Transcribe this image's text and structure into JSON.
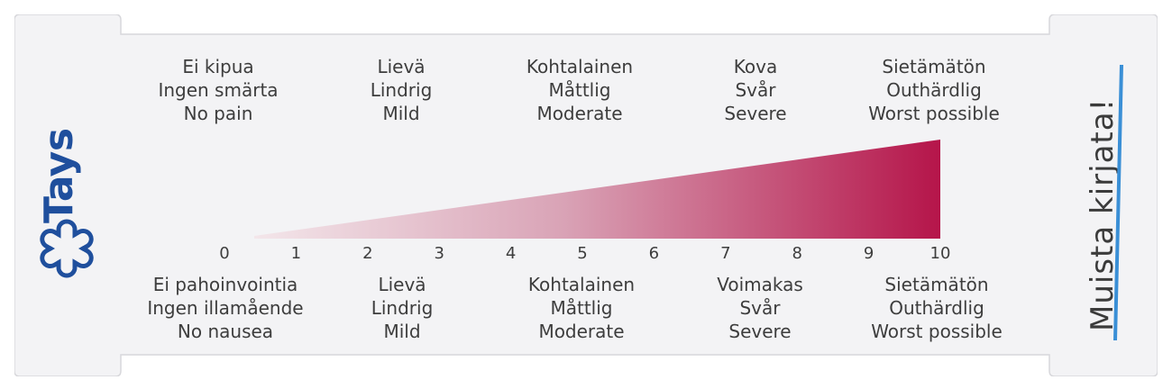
{
  "brand": {
    "name": "Tays",
    "color": "#1f4f9d"
  },
  "pain_labels": [
    {
      "lines": [
        "Ei kipua",
        "Ingen smärta",
        "No pain"
      ]
    },
    {
      "lines": [
        "Lievä",
        "Lindrig",
        "Mild"
      ]
    },
    {
      "lines": [
        "Kohtalainen",
        "Måttlig",
        "Moderate"
      ]
    },
    {
      "lines": [
        "Kova",
        "Svår",
        "Severe"
      ]
    },
    {
      "lines": [
        "Sietämätön",
        "Outhärdlig",
        "Worst possible"
      ]
    }
  ],
  "nausea_labels": [
    {
      "lines": [
        "Ei pahoinvointia",
        "Ingen illamående",
        "No nausea"
      ]
    },
    {
      "lines": [
        "Lievä",
        "Lindrig",
        "Mild"
      ]
    },
    {
      "lines": [
        "Kohtalainen",
        "Måttlig",
        "Moderate"
      ]
    },
    {
      "lines": [
        "Voimakas",
        "Svår",
        "Severe"
      ]
    },
    {
      "lines": [
        "Sietämätön",
        "Outhärdlig",
        "Worst possible"
      ]
    }
  ],
  "scale": {
    "ticks": [
      "0",
      "1",
      "2",
      "3",
      "4",
      "5",
      "6",
      "7",
      "8",
      "9",
      "10"
    ],
    "min": 0,
    "max": 10
  },
  "colors": {
    "gradient_end": "#b5154a",
    "gradient_start": "#f3e6ea",
    "underline": "#3a8fd6"
  },
  "reminder": {
    "text": "Muista kirjata!"
  }
}
